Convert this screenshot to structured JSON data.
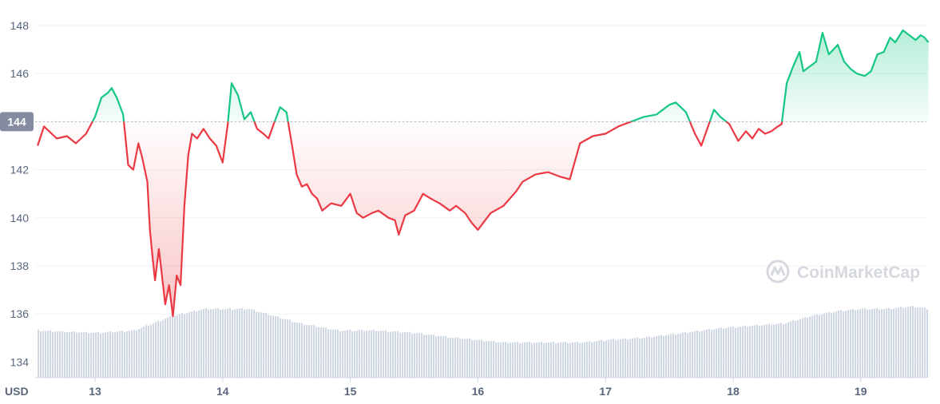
{
  "chart_data": {
    "type": "line",
    "currency_label": "USD",
    "baseline": 144,
    "baseline_label": "144",
    "ylim": [
      133.4,
      148.6
    ],
    "yticks": [
      134,
      136,
      138,
      140,
      142,
      144,
      146,
      148
    ],
    "ytick_labels": [
      "134",
      "136",
      "138",
      "140",
      "142",
      "144",
      "146",
      "148"
    ],
    "xlim": [
      12.55,
      19.53
    ],
    "xticks": [
      13,
      14,
      15,
      16,
      17,
      18,
      19
    ],
    "xtick_labels": [
      "13",
      "14",
      "15",
      "16",
      "17",
      "18",
      "19"
    ],
    "grid": true,
    "watermark": "CoinMarketCap",
    "colors": {
      "up": "#16c784",
      "down": "#ea3943",
      "badge": "#858ca2",
      "volume": "#cfd6e4",
      "grid": "#eff2f5"
    },
    "series": [
      {
        "x": [
          12.55,
          12.6,
          12.7,
          12.78,
          12.85,
          12.93,
          13.0,
          13.05,
          13.1,
          13.13,
          13.17,
          13.22,
          13.26,
          13.3,
          13.34,
          13.37,
          13.41,
          13.43,
          13.45,
          13.47,
          13.5,
          13.52,
          13.55,
          13.58,
          13.61,
          13.64,
          13.67,
          13.7,
          13.73,
          13.76,
          13.8,
          13.85,
          13.9,
          13.95,
          14.0,
          14.04,
          14.07,
          14.12,
          14.17,
          14.22,
          14.27,
          14.32,
          14.36,
          14.4,
          14.45,
          14.5,
          14.55,
          14.58,
          14.62,
          14.66,
          14.7,
          14.74,
          14.78,
          14.85,
          14.93,
          15.0,
          15.05,
          15.1,
          15.17,
          15.22,
          15.3,
          15.35,
          15.38,
          15.43,
          15.5,
          15.57,
          15.63,
          15.7,
          15.78,
          15.83,
          15.9,
          15.95,
          16.0,
          16.1,
          16.2,
          16.3,
          16.35,
          16.45,
          16.55,
          16.65,
          16.72,
          16.8,
          16.9,
          17.0,
          17.1,
          17.2,
          17.3,
          17.4,
          17.5,
          17.55,
          17.63,
          17.7,
          17.75,
          17.85,
          17.9,
          17.97,
          18.04,
          18.1,
          18.15,
          18.2,
          18.25,
          18.3,
          18.35,
          18.38,
          18.42,
          18.47,
          18.52,
          18.55,
          18.6,
          18.65,
          18.7,
          18.75,
          18.82,
          18.87,
          18.92,
          18.97,
          19.03,
          19.08,
          19.13,
          19.18,
          19.23,
          19.27,
          19.33,
          19.38,
          19.43,
          19.47,
          19.5,
          19.53
        ],
        "values": [
          143.0,
          143.8,
          143.3,
          143.4,
          143.1,
          143.5,
          144.2,
          145.0,
          145.2,
          145.4,
          145.0,
          144.3,
          142.2,
          142.0,
          143.1,
          142.5,
          141.5,
          139.5,
          138.4,
          137.4,
          138.7,
          137.8,
          136.4,
          137.2,
          135.9,
          137.6,
          137.2,
          140.5,
          142.6,
          143.5,
          143.3,
          143.7,
          143.3,
          143.0,
          142.3,
          143.9,
          145.6,
          145.1,
          144.1,
          144.4,
          143.7,
          143.5,
          143.3,
          143.9,
          144.6,
          144.4,
          142.8,
          141.8,
          141.3,
          141.4,
          141.0,
          140.8,
          140.3,
          140.6,
          140.5,
          141.0,
          140.2,
          140.0,
          140.2,
          140.3,
          140.0,
          139.9,
          139.3,
          140.1,
          140.3,
          141.0,
          140.8,
          140.6,
          140.3,
          140.5,
          140.2,
          139.8,
          139.5,
          140.2,
          140.5,
          141.1,
          141.5,
          141.8,
          141.9,
          141.7,
          141.6,
          143.1,
          143.4,
          143.5,
          143.8,
          144.0,
          144.2,
          144.3,
          144.7,
          144.8,
          144.4,
          143.5,
          143.0,
          144.5,
          144.2,
          143.9,
          143.2,
          143.6,
          143.3,
          143.7,
          143.5,
          143.6,
          143.8,
          143.9,
          145.6,
          146.3,
          146.9,
          146.1,
          146.3,
          146.5,
          147.7,
          146.8,
          147.2,
          146.5,
          146.2,
          146.0,
          145.9,
          146.1,
          146.8,
          146.9,
          147.5,
          147.3,
          147.8,
          147.6,
          147.4,
          147.6,
          147.5,
          147.3
        ]
      }
    ],
    "volume": {
      "x": [
        12.55,
        13.0,
        13.3,
        13.6,
        13.85,
        14.2,
        14.6,
        14.9,
        15.2,
        15.5,
        15.8,
        16.0,
        16.2,
        16.5,
        16.8,
        17.0,
        17.3,
        17.6,
        17.9,
        18.15,
        18.4,
        18.6,
        18.8,
        19.0,
        19.2,
        19.4,
        19.53
      ],
      "values": [
        135.3,
        135.2,
        135.3,
        135.9,
        136.2,
        136.2,
        135.6,
        135.3,
        135.3,
        135.2,
        135.0,
        134.9,
        134.8,
        134.8,
        134.8,
        134.9,
        135.0,
        135.2,
        135.4,
        135.5,
        135.6,
        135.9,
        136.1,
        136.2,
        136.2,
        136.3,
        136.2
      ]
    }
  }
}
